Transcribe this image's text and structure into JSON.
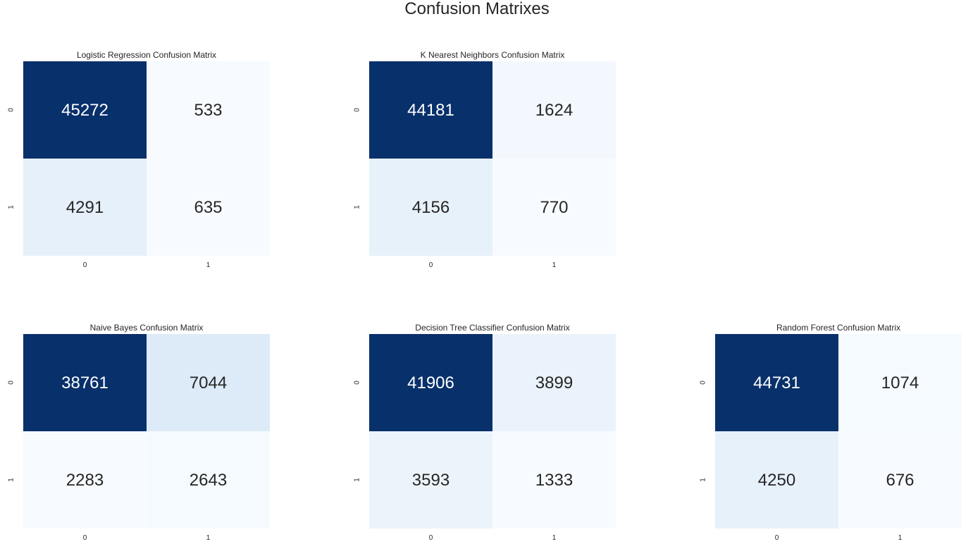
{
  "suptitle": "Confusion Matrixes",
  "chart_data": [
    {
      "type": "heatmap",
      "title": "Logistic Regression Confusion Matrix",
      "x_ticks": [
        "0",
        "1"
      ],
      "y_ticks": [
        "0",
        "1"
      ],
      "matrix": [
        [
          45272,
          533
        ],
        [
          4291,
          635
        ]
      ],
      "colormap": "Blues",
      "colorbar": false
    },
    {
      "type": "heatmap",
      "title": "K Nearest Neighbors Confusion Matrix",
      "x_ticks": [
        "0",
        "1"
      ],
      "y_ticks": [
        "0",
        "1"
      ],
      "matrix": [
        [
          44181,
          1624
        ],
        [
          4156,
          770
        ]
      ],
      "colormap": "Blues",
      "colorbar": false
    },
    {
      "type": "heatmap",
      "title": "Naive Bayes Confusion Matrix",
      "x_ticks": [
        "0",
        "1"
      ],
      "y_ticks": [
        "0",
        "1"
      ],
      "matrix": [
        [
          38761,
          7044
        ],
        [
          2283,
          2643
        ]
      ],
      "colormap": "Blues",
      "colorbar": false
    },
    {
      "type": "heatmap",
      "title": "Decision Tree Classifier Confusion Matrix",
      "x_ticks": [
        "0",
        "1"
      ],
      "y_ticks": [
        "0",
        "1"
      ],
      "matrix": [
        [
          41906,
          3899
        ],
        [
          3593,
          1333
        ]
      ],
      "colormap": "Blues",
      "colorbar": false
    },
    {
      "type": "heatmap",
      "title": "Random Forest Confusion Matrix",
      "x_ticks": [
        "0",
        "1"
      ],
      "y_ticks": [
        "0",
        "1"
      ],
      "matrix": [
        [
          44731,
          1074
        ],
        [
          4250,
          676
        ]
      ],
      "colormap": "Blues",
      "colorbar": false
    }
  ]
}
